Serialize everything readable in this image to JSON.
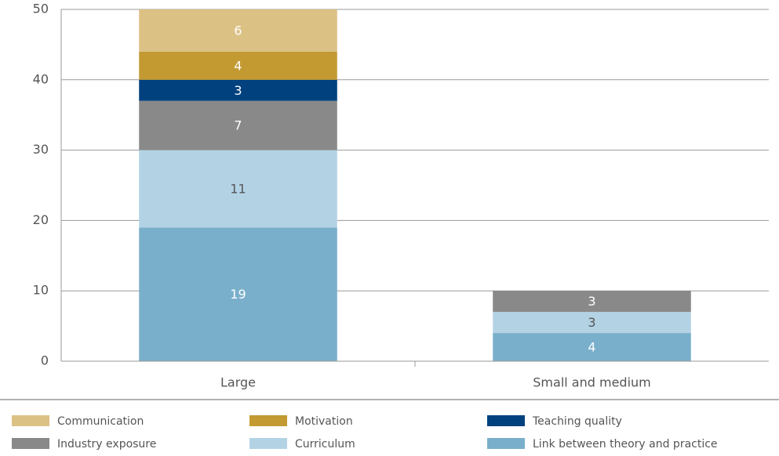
{
  "chart_data": {
    "type": "stacked_bar",
    "categories": [
      "Large",
      "Small and medium"
    ],
    "series": [
      {
        "name": "Link between theory and practice",
        "color": "#7aafcb",
        "label_color": "#ffffff",
        "values": [
          19,
          4
        ]
      },
      {
        "name": "Curriculum",
        "color": "#b3d3e5",
        "label_color": "#555555",
        "values": [
          11,
          3
        ]
      },
      {
        "name": "Industry exposure",
        "color": "#898989",
        "label_color": "#ffffff",
        "values": [
          7,
          3
        ]
      },
      {
        "name": "Teaching quality",
        "color": "#00417e",
        "label_color": "#ffffff",
        "values": [
          3,
          null
        ]
      },
      {
        "name": "Motivation",
        "color": "#c39a32",
        "label_color": "#ffffff",
        "values": [
          4,
          null
        ]
      },
      {
        "name": "Communication",
        "color": "#dcc185",
        "label_color": "#ffffff",
        "values": [
          6,
          null
        ]
      }
    ],
    "ylim": [
      0,
      50
    ],
    "yticks": [
      0,
      10,
      20,
      30,
      40,
      50
    ],
    "grid": true
  }
}
